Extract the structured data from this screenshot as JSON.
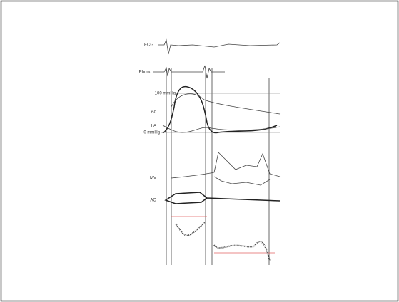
{
  "labels": {
    "ecg": "ECG",
    "phono": "Phono",
    "pressure_top": "100 mmHg",
    "ao": "Ao",
    "la": "LA",
    "pressure_bottom": "0 mmHg",
    "mv": "MV",
    "ao_valve": "AO"
  }
}
